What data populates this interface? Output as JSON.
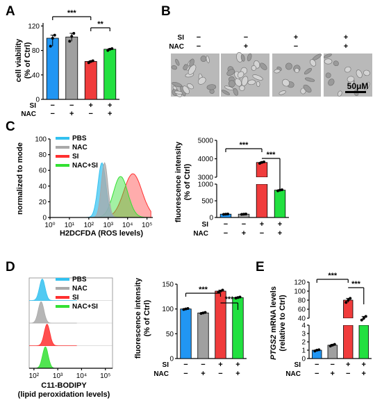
{
  "panels": {
    "A": "A",
    "B": "B",
    "C": "C",
    "D": "D",
    "E": "E"
  },
  "colors": {
    "blue": "#2196F3",
    "gray": "#A0A0A0",
    "red": "#F03C3C",
    "green": "#22E040",
    "pbs": "#33C1F0",
    "nac": "#A9A9A9",
    "si": "#FF3030",
    "nacsi": "#33E033"
  },
  "treatment": {
    "row1_label": "SI",
    "row2_label": "NAC",
    "minus": "−",
    "plus": "+"
  },
  "conditions": [
    {
      "si": "−",
      "nac": "−"
    },
    {
      "si": "−",
      "nac": "+"
    },
    {
      "si": "+",
      "nac": "−"
    },
    {
      "si": "+",
      "nac": "+"
    }
  ],
  "legend": [
    "PBS",
    "NAC",
    "SI",
    "NAC+SI"
  ],
  "panel_b": {
    "scale_bar": "50μM"
  },
  "chart_data": [
    {
      "panel": "A",
      "type": "bar",
      "ylabel": "cell viability (% of Ctrl)",
      "ylabel_lines": [
        "cell viability",
        "(% of Ctrl)"
      ],
      "ylim": [
        0,
        125
      ],
      "yticks": [
        "0",
        "40",
        "80",
        "120"
      ],
      "values": [
        100,
        102,
        62,
        82
      ],
      "points": [
        [
          87,
          100,
          105
        ],
        [
          95,
          103,
          108
        ],
        [
          60,
          62,
          63
        ],
        [
          80,
          82,
          83
        ]
      ],
      "sig": [
        "***",
        "**"
      ]
    },
    {
      "panel": "C-hist",
      "type": "area",
      "xlabel": "H2DCFDA (ROS levels)",
      "ylabel": "normalized to mode",
      "ylim": [
        0,
        100
      ],
      "yticks": [
        "0",
        "20",
        "40",
        "60",
        "80",
        "100"
      ],
      "xticks": [
        "10⁰",
        "10¹",
        "10²",
        "10³",
        "10⁴",
        "10⁵"
      ],
      "series": [
        {
          "name": "PBS",
          "peak_log": 2.6,
          "width": 0.22,
          "skew": 0.1
        },
        {
          "name": "NAC",
          "peak_log": 2.75,
          "width": 0.18,
          "skew": 0.1
        },
        {
          "name": "SI",
          "peak_log": 4.1,
          "width": 0.5,
          "skew": 0.1
        },
        {
          "name": "NAC+SI",
          "peak_log": 3.5,
          "width": 0.4,
          "skew": 0.1
        }
      ]
    },
    {
      "panel": "C-bar",
      "type": "bar",
      "ylabel": "fluorescence intensity (% of Ctrl)",
      "ylabel_lines": [
        "fluorescence intensity",
        "(% of Ctrl)"
      ],
      "axis_break": true,
      "lower_ticks": [
        "0",
        "500",
        "1000"
      ],
      "upper_ticks": [
        "3000",
        "4000",
        "5000"
      ],
      "values": [
        100,
        100,
        3800,
        820
      ],
      "points": [
        [
          95,
          100,
          105
        ],
        [
          95,
          100,
          105
        ],
        [
          3750,
          3800,
          3830
        ],
        [
          800,
          820,
          830
        ]
      ],
      "sig": [
        "***",
        "***"
      ]
    },
    {
      "panel": "D-hist",
      "type": "area",
      "xlabel": "C11-BODIPY",
      "xlabel2": "(lipid peroxidation levels)",
      "xticks": [
        "10²",
        "10³",
        "10⁴",
        "10⁵"
      ],
      "series": [
        {
          "name": "PBS",
          "peak_log": 2.35,
          "width": 0.12
        },
        {
          "name": "NAC",
          "peak_log": 2.3,
          "width": 0.12
        },
        {
          "name": "SI",
          "peak_log": 2.55,
          "width": 0.12
        },
        {
          "name": "NAC+SI",
          "peak_log": 2.48,
          "width": 0.12
        }
      ]
    },
    {
      "panel": "D-bar",
      "type": "bar",
      "ylabel": "fluorescence intensity (% of Ctrl)",
      "ylabel_lines": [
        "fluorescence intensity",
        "(% of Ctrl)"
      ],
      "ylim": [
        0,
        150
      ],
      "yticks": [
        "0",
        "50",
        "100",
        "150"
      ],
      "values": [
        100,
        92,
        136,
        123
      ],
      "points": [
        [
          99,
          100,
          101
        ],
        [
          91,
          92,
          93
        ],
        [
          134,
          136,
          138
        ],
        [
          122,
          123,
          124
        ]
      ],
      "sig": [
        "***",
        "***"
      ]
    },
    {
      "panel": "E",
      "type": "bar",
      "ylabel": "PTGS2 mRNA levels (relative to Ctrl)",
      "ylabel_italic": "PTGS2",
      "ylabel_rest": " mRNA levels",
      "ylabel_line2": "(relative to Ctrl)",
      "axis_break": true,
      "lower_ticks": [
        "0",
        "1",
        "2",
        "3",
        "4"
      ],
      "upper_ticks": [
        "40",
        "60",
        "80",
        "100",
        "120"
      ],
      "values": [
        1,
        1.6,
        80,
        40
      ],
      "points": [
        [
          0.9,
          1.0,
          1.05
        ],
        [
          1.5,
          1.6,
          1.7
        ],
        [
          75,
          80,
          84
        ],
        [
          36,
          40,
          44
        ]
      ],
      "sig": [
        "***",
        "***"
      ]
    }
  ]
}
